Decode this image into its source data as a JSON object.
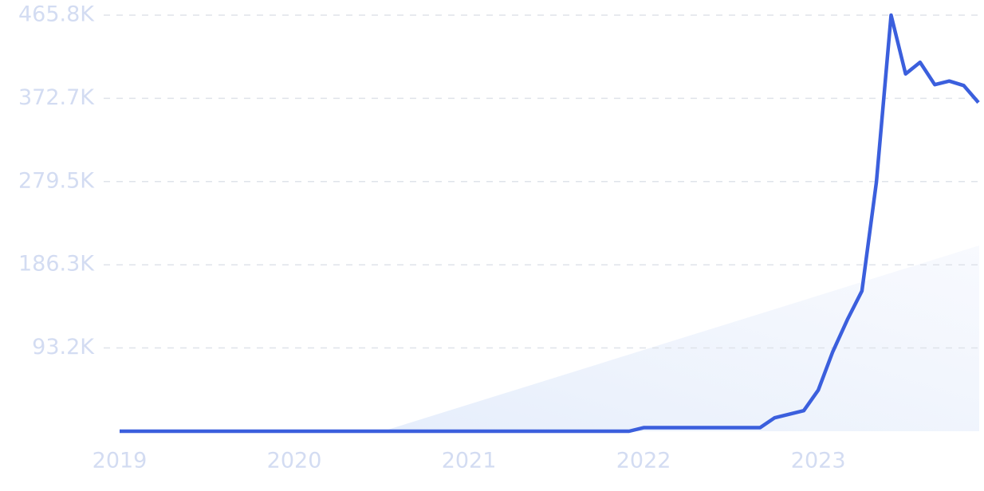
{
  "chart_data": {
    "type": "line",
    "x": [
      2019,
      2021.917,
      2022,
      2022.667,
      2022.75,
      2022.917,
      2023,
      2023.083,
      2023.167,
      2023.25,
      2023.333,
      2023.417,
      2023.5,
      2023.583,
      2023.667,
      2023.75,
      2023.833,
      2023.917
    ],
    "series": [
      {
        "color": "#3b5fdd",
        "values": [
          0,
          0,
          4000,
          4000,
          15000,
          23000,
          46000,
          89000,
          125000,
          157000,
          279000,
          465800,
          400000,
          413000,
          388000,
          392000,
          387000,
          368000
        ]
      }
    ],
    "xlim": [
      2019,
      2023.917
    ],
    "xticks": [
      2019,
      2020,
      2021,
      2022,
      2023
    ],
    "ylim": [
      0,
      465800
    ],
    "yticks": [
      {
        "value": 93200,
        "label": "93.2K"
      },
      {
        "value": 186300,
        "label": "186.3K"
      },
      {
        "value": 279500,
        "label": "279.5K"
      },
      {
        "value": 372700,
        "label": "372.7K"
      },
      {
        "value": 465800,
        "label": "465.8K"
      }
    ],
    "grid": true
  }
}
